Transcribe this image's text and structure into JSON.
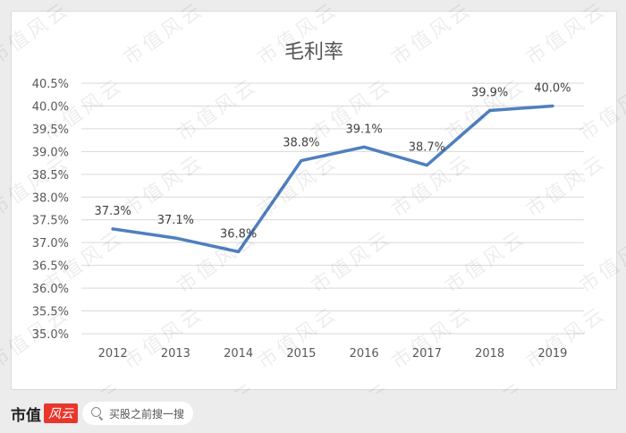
{
  "chart_data": {
    "type": "line",
    "title": "毛利率",
    "categories": [
      "2012",
      "2013",
      "2014",
      "2015",
      "2016",
      "2017",
      "2018",
      "2019"
    ],
    "values": [
      37.3,
      37.1,
      36.8,
      38.8,
      39.1,
      38.7,
      39.9,
      40.0
    ],
    "data_labels": [
      "37.3%",
      "37.1%",
      "36.8%",
      "38.8%",
      "39.1%",
      "38.7%",
      "39.9%",
      "40.0%"
    ],
    "y_ticks": [
      "35.0%",
      "35.5%",
      "36.0%",
      "36.5%",
      "37.0%",
      "37.5%",
      "38.0%",
      "38.5%",
      "39.0%",
      "39.5%",
      "40.0%",
      "40.5%"
    ],
    "ylim": [
      35.0,
      40.5
    ],
    "grid": true,
    "line_color": "#4f7fbe",
    "xlabel": "",
    "ylabel": ""
  },
  "watermark_text": "市值风云",
  "footer": {
    "brand": "市值",
    "brand_logo": "风云",
    "search_placeholder": "买股之前搜一搜"
  }
}
